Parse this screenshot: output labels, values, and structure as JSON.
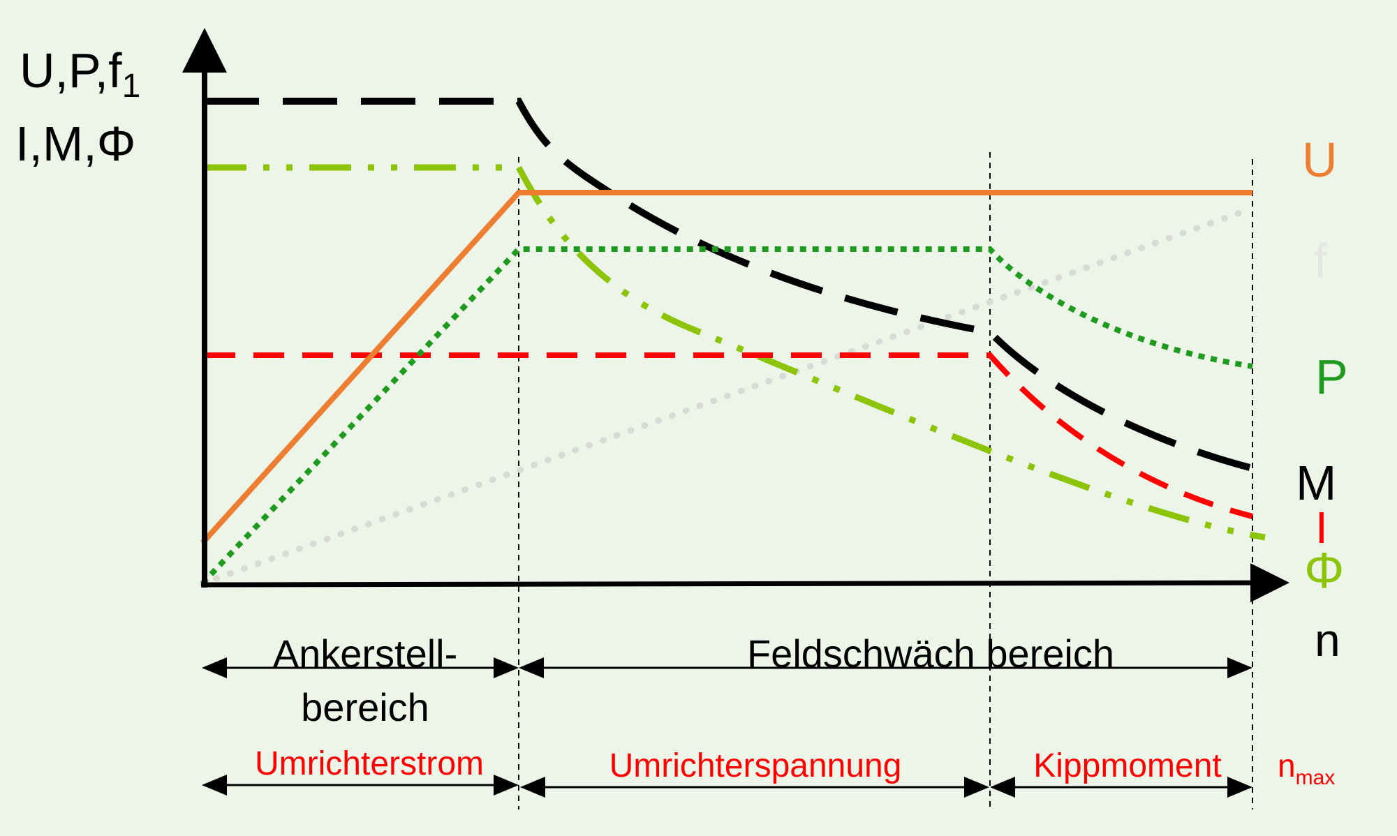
{
  "background": "#edf4e8",
  "colors": {
    "axis": "#000000",
    "U": "#ed7d31",
    "f": "#d8dad6",
    "P": "#1e9a1e",
    "M": "#000000",
    "I": "#ff0000",
    "Phi": "#8cc40a",
    "guides": "#000000"
  },
  "axes": {
    "y_label_line1_base": "U,P,f",
    "y_label_line1_sub": "1",
    "y_label_line2": "I,M,Φ",
    "x_label": "n"
  },
  "legend": {
    "U": "U",
    "f": "f",
    "P": "P",
    "M": "M",
    "I": "I",
    "Phi": "Φ"
  },
  "regions": {
    "anker_line1": "Ankerstell-",
    "anker_line2": "bereich",
    "feld": "Feldschwäch bereich"
  },
  "limits": {
    "strom": "Umrichterstrom",
    "spannung": "Umrichterspannung",
    "kipp": "Kippmoment",
    "nmax_base": "n",
    "nmax_sub": "max"
  },
  "curves": [
    {
      "name": "U",
      "style": "solid"
    },
    {
      "name": "f",
      "style": "dotted"
    },
    {
      "name": "P",
      "style": "dotted"
    },
    {
      "name": "M",
      "style": "long-dash"
    },
    {
      "name": "I",
      "style": "dash"
    },
    {
      "name": "Φ",
      "style": "dash-dot-dot"
    }
  ]
}
